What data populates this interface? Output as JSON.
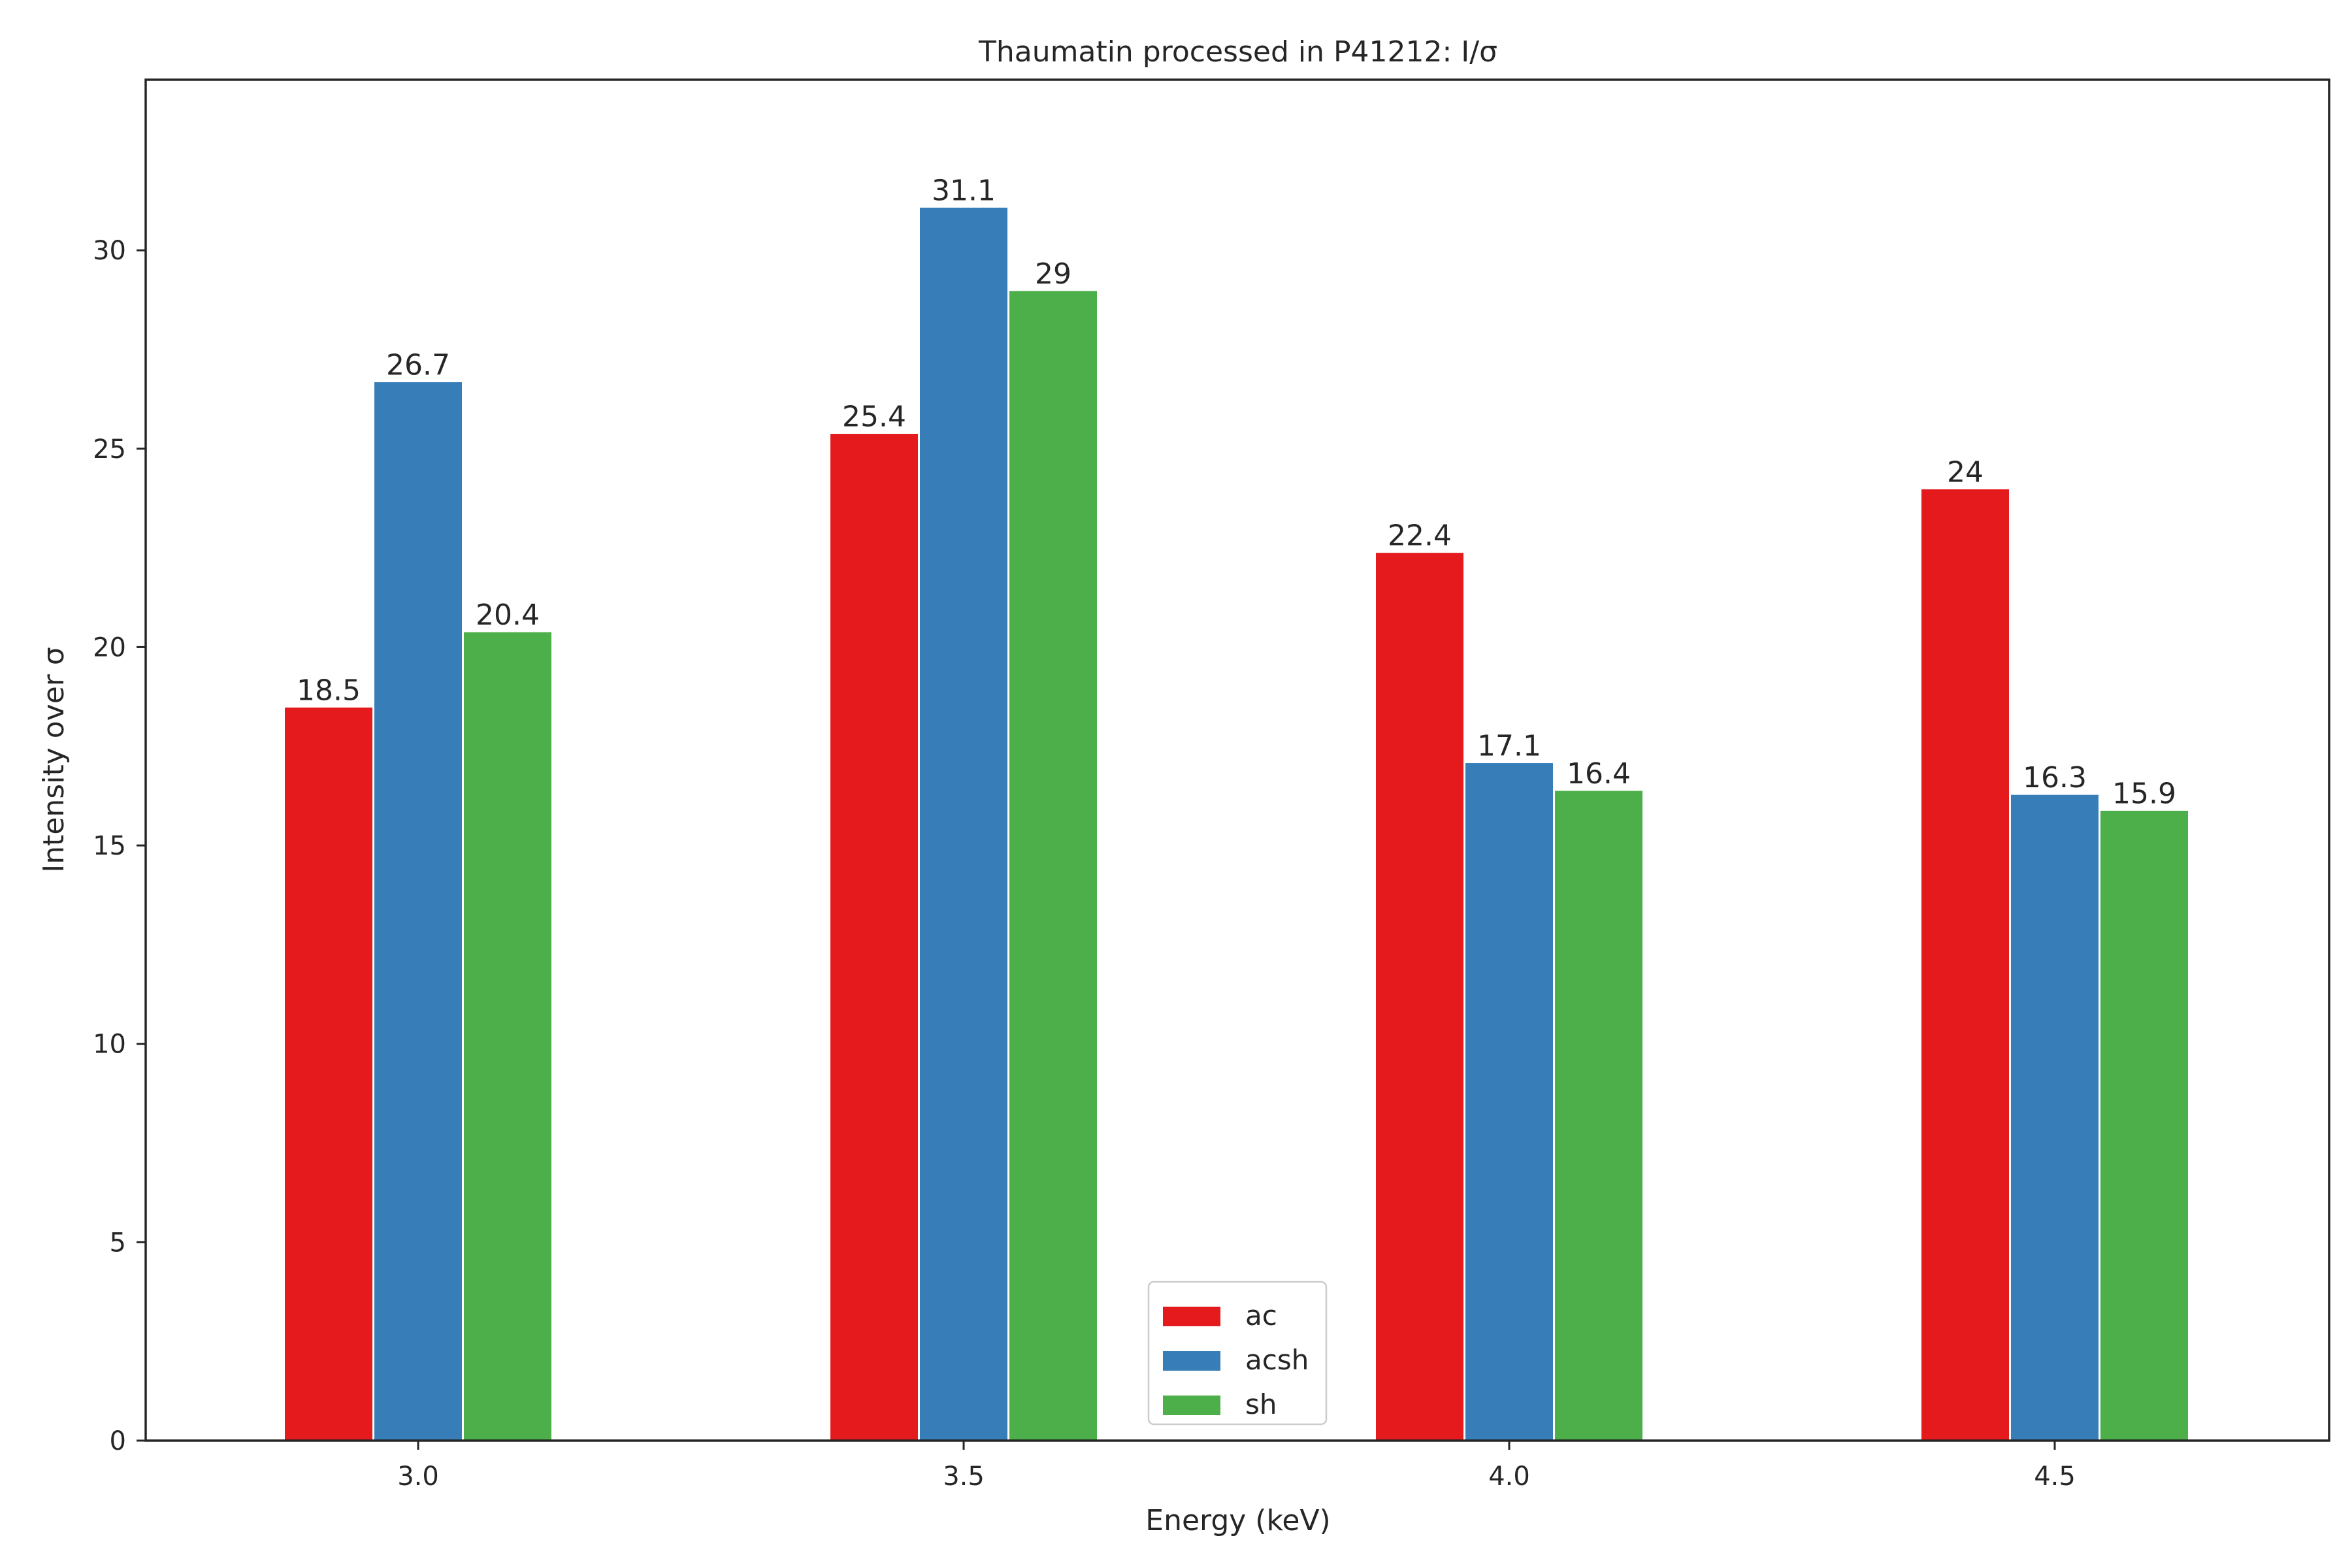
{
  "chart_data": {
    "type": "bar",
    "title": "Thaumatin processed in P41212: I/σ",
    "xlabel": "Energy (keV)",
    "ylabel": "Intensity over σ",
    "categories": [
      "3.0",
      "3.5",
      "4.0",
      "4.5"
    ],
    "series": [
      {
        "name": "ac",
        "color": "#e41a1c",
        "values": [
          18.5,
          25.4,
          22.4,
          24
        ],
        "labels": [
          "18.5",
          "25.4",
          "22.4",
          "24"
        ]
      },
      {
        "name": "acsh",
        "color": "#377eb8",
        "values": [
          26.7,
          31.1,
          17.1,
          16.3
        ],
        "labels": [
          "26.7",
          "31.1",
          "17.1",
          "16.3"
        ]
      },
      {
        "name": "sh",
        "color": "#4daf4a",
        "values": [
          20.4,
          29,
          16.4,
          15.9
        ],
        "labels": [
          "20.4",
          "29",
          "16.4",
          "15.9"
        ]
      }
    ],
    "yticks": [
      "0",
      "5",
      "10",
      "15",
      "20",
      "25",
      "30"
    ],
    "ylim": [
      0,
      34.3
    ],
    "grid": false,
    "legend_position": "lower center"
  }
}
